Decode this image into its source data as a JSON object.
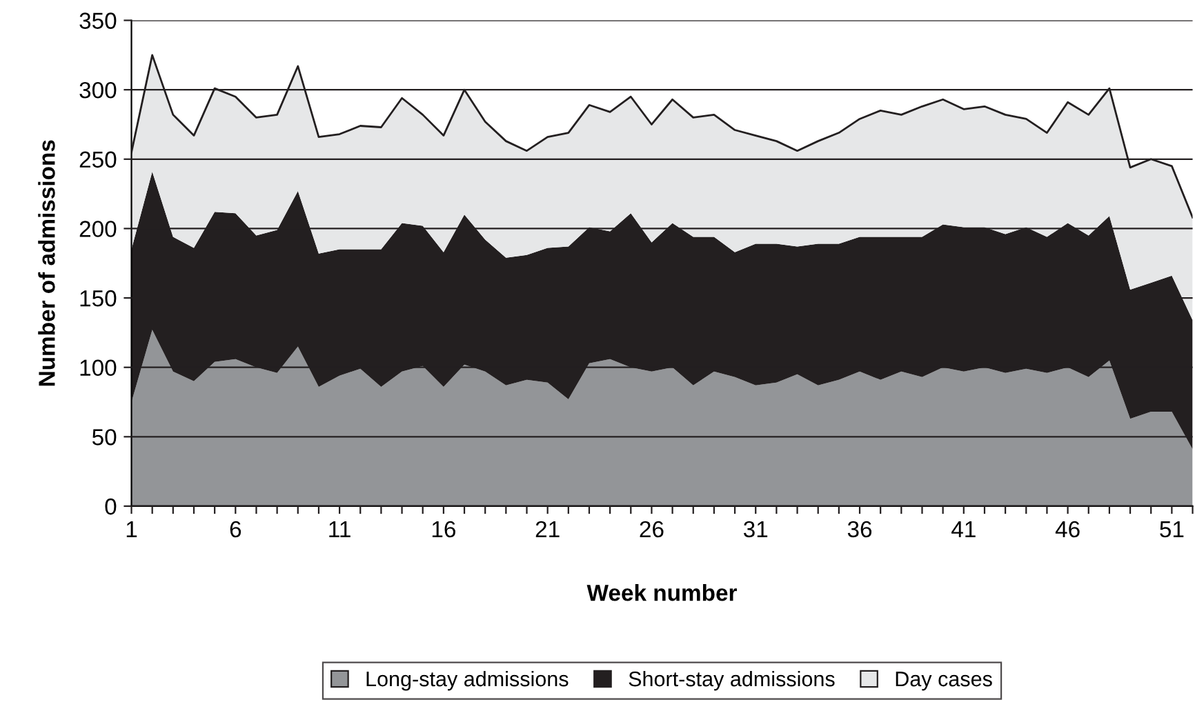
{
  "chart_data": {
    "type": "area",
    "stacked": true,
    "xlabel": "Week number",
    "ylabel": "Number of admissions",
    "x": [
      1,
      2,
      3,
      4,
      5,
      6,
      7,
      8,
      9,
      10,
      11,
      12,
      13,
      14,
      15,
      16,
      17,
      18,
      19,
      20,
      21,
      22,
      23,
      24,
      25,
      26,
      27,
      28,
      29,
      30,
      31,
      32,
      33,
      34,
      35,
      36,
      37,
      38,
      39,
      40,
      41,
      42,
      43,
      44,
      45,
      46,
      47,
      48,
      49,
      50,
      51,
      52
    ],
    "series": [
      {
        "name": "Long-stay admissions",
        "color": "#939598",
        "values": [
          75,
          127,
          97,
          90,
          104,
          106,
          100,
          96,
          115,
          86,
          94,
          99,
          86,
          97,
          101,
          86,
          102,
          97,
          87,
          91,
          89,
          77,
          103,
          106,
          100,
          97,
          100,
          87,
          97,
          93,
          87,
          89,
          95,
          87,
          91,
          97,
          91,
          97,
          93,
          100,
          97,
          100,
          96,
          99,
          96,
          100,
          93,
          105,
          63,
          68,
          68,
          41
        ]
      },
      {
        "name": "Short-stay admissions",
        "color": "#231f20",
        "values": [
          110,
          114,
          97,
          96,
          108,
          105,
          95,
          103,
          112,
          96,
          91,
          86,
          99,
          107,
          101,
          97,
          108,
          95,
          92,
          90,
          97,
          110,
          98,
          92,
          111,
          93,
          104,
          107,
          97,
          90,
          102,
          100,
          92,
          102,
          98,
          97,
          103,
          97,
          101,
          103,
          104,
          101,
          100,
          102,
          98,
          104,
          102,
          104,
          93,
          93,
          98,
          93
        ]
      },
      {
        "name": "Day cases",
        "color": "#e6e7e8",
        "values": [
          70,
          84,
          88,
          81,
          89,
          84,
          85,
          83,
          90,
          84,
          83,
          89,
          88,
          90,
          80,
          84,
          90,
          85,
          84,
          75,
          80,
          82,
          88,
          86,
          84,
          85,
          89,
          86,
          88,
          88,
          78,
          74,
          69,
          74,
          80,
          85,
          91,
          88,
          94,
          90,
          85,
          87,
          86,
          78,
          75,
          87,
          87,
          92,
          88,
          89,
          79,
          74
        ]
      }
    ],
    "xlim": [
      1,
      52
    ],
    "xticks": [
      1,
      {
        "value": 2,
        "label": null
      },
      {
        "value": 3,
        "label": null
      },
      {
        "value": 4,
        "label": null
      },
      {
        "value": 5,
        "label": null
      },
      6,
      {
        "value": 7,
        "label": null
      },
      {
        "value": 8,
        "label": null
      },
      {
        "value": 9,
        "label": null
      },
      {
        "value": 10,
        "label": null
      },
      11,
      {
        "value": 12,
        "label": null
      },
      {
        "value": 13,
        "label": null
      },
      {
        "value": 14,
        "label": null
      },
      {
        "value": 15,
        "label": null
      },
      16,
      {
        "value": 17,
        "label": null
      },
      {
        "value": 18,
        "label": null
      },
      {
        "value": 19,
        "label": null
      },
      {
        "value": 20,
        "label": null
      },
      21,
      {
        "value": 22,
        "label": null
      },
      {
        "value": 23,
        "label": null
      },
      {
        "value": 24,
        "label": null
      },
      {
        "value": 25,
        "label": null
      },
      26,
      {
        "value": 27,
        "label": null
      },
      {
        "value": 28,
        "label": null
      },
      {
        "value": 29,
        "label": null
      },
      {
        "value": 30,
        "label": null
      },
      31,
      {
        "value": 32,
        "label": null
      },
      {
        "value": 33,
        "label": null
      },
      {
        "value": 34,
        "label": null
      },
      {
        "value": 35,
        "label": null
      },
      36,
      {
        "value": 37,
        "label": null
      },
      {
        "value": 38,
        "label": null
      },
      {
        "value": 39,
        "label": null
      },
      {
        "value": 40,
        "label": null
      },
      41,
      {
        "value": 42,
        "label": null
      },
      {
        "value": 43,
        "label": null
      },
      {
        "value": 44,
        "label": null
      },
      {
        "value": 45,
        "label": null
      },
      46,
      {
        "value": 47,
        "label": null
      },
      {
        "value": 48,
        "label": null
      },
      {
        "value": 49,
        "label": null
      },
      {
        "value": 50,
        "label": null
      },
      51,
      {
        "value": 52,
        "label": null
      }
    ],
    "ylim": [
      0,
      350
    ],
    "yticks": [
      0,
      50,
      100,
      150,
      200,
      250,
      300,
      350
    ],
    "grid": "y",
    "legend": "bottom"
  }
}
